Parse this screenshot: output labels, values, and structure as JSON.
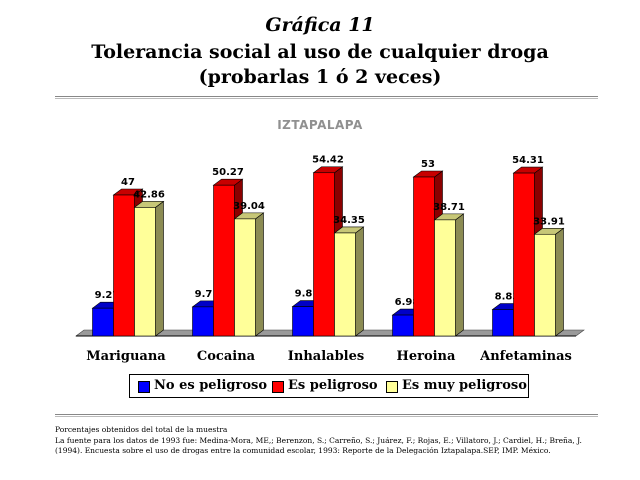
{
  "header": {
    "grafica_label": "Gráfica 11",
    "title_line1": "Tolerancia social al uso de cualquier droga",
    "title_line2": "(probarlas 1 ó 2 veces)"
  },
  "chart_data": {
    "type": "bar",
    "title": "IZTAPALAPA",
    "categories": [
      "Mariguana",
      "Cocaina",
      "Inhalables",
      "Heroina",
      "Anfetaminas"
    ],
    "series": [
      {
        "name": "No es peligroso",
        "color": "#0000ff",
        "values": [
          9.27,
          9.71,
          9.81,
          6.98,
          8.83
        ]
      },
      {
        "name": "Es peligroso",
        "color": "#ff0000",
        "values": [
          47,
          50.27,
          54.42,
          53,
          54.31
        ]
      },
      {
        "name": "Es muy peligroso",
        "color": "#ffff99",
        "values": [
          42.86,
          39.04,
          34.35,
          38.71,
          33.91
        ]
      }
    ],
    "value_labels": [
      [
        "9.27",
        "9.71",
        "9.81",
        "6.98",
        "8.83"
      ],
      [
        "47",
        "50.27",
        "54.42",
        "53",
        "54.31"
      ],
      [
        "42.86",
        "39.04",
        "34.35",
        "38.71",
        "33.91"
      ]
    ],
    "ylim": [
      0,
      60
    ],
    "grid": false,
    "legend_position": "bottom",
    "three_d": true
  },
  "footer": {
    "note1": "Porcentajes obtenidos del total de la muestra",
    "note2": "La fuente para los datos de 1993 fue: Medina-Mora, ME,; Berenzon, S.; Carreño, S.; Juárez, F.; Rojas, E.; Villatoro, J.; Cardiel, H.; Breña, J.",
    "note3": "(1994). Encuesta sobre el uso de drogas entre la comunidad escolar, 1993: Reporte de la Delegación Iztapalapa.SEP, IMP. México."
  }
}
